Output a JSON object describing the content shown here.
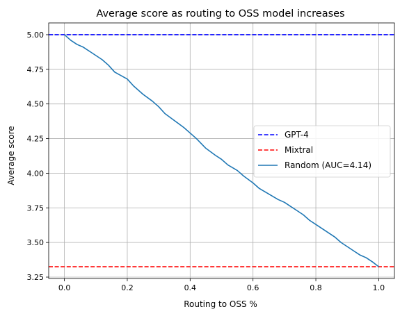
{
  "chart_data": {
    "type": "line",
    "title": "Average score as routing to OSS model increases",
    "xlabel": "Routing to OSS %",
    "ylabel": "Average score",
    "xlim": [
      -0.05,
      1.05
    ],
    "ylim": [
      3.24,
      5.085
    ],
    "xticks": [
      0.0,
      0.2,
      0.4,
      0.6,
      0.8,
      1.0
    ],
    "xtick_labels": [
      "0.0",
      "0.2",
      "0.4",
      "0.6",
      "0.8",
      "1.0"
    ],
    "yticks": [
      3.25,
      3.5,
      3.75,
      4.0,
      4.25,
      4.5,
      4.75,
      5.0
    ],
    "ytick_labels": [
      "3.25",
      "3.50",
      "3.75",
      "4.00",
      "4.25",
      "4.50",
      "4.75",
      "5.00"
    ],
    "grid": true,
    "legend_position": "center-right",
    "hlines": [
      {
        "name": "GPT-4",
        "y": 5.0,
        "color": "#0000ff",
        "style": "dashed"
      },
      {
        "name": "Mixtral",
        "y": 3.325,
        "color": "#ff0000",
        "style": "dashed"
      }
    ],
    "series": [
      {
        "name": "Random (AUC=4.14)",
        "color": "#1f77b4",
        "style": "solid",
        "x": [
          0.0,
          0.02,
          0.04,
          0.06,
          0.08,
          0.1,
          0.12,
          0.14,
          0.16,
          0.2,
          0.22,
          0.25,
          0.28,
          0.3,
          0.32,
          0.35,
          0.38,
          0.4,
          0.42,
          0.45,
          0.48,
          0.5,
          0.52,
          0.55,
          0.57,
          0.6,
          0.62,
          0.65,
          0.68,
          0.7,
          0.72,
          0.74,
          0.76,
          0.78,
          0.8,
          0.82,
          0.84,
          0.86,
          0.88,
          0.9,
          0.92,
          0.94,
          0.96,
          0.98,
          1.0
        ],
        "y": [
          5.0,
          4.96,
          4.93,
          4.91,
          4.88,
          4.85,
          4.82,
          4.78,
          4.73,
          4.68,
          4.63,
          4.57,
          4.52,
          4.48,
          4.43,
          4.38,
          4.33,
          4.29,
          4.25,
          4.18,
          4.13,
          4.1,
          4.06,
          4.02,
          3.98,
          3.93,
          3.89,
          3.85,
          3.81,
          3.79,
          3.76,
          3.73,
          3.7,
          3.66,
          3.63,
          3.6,
          3.57,
          3.54,
          3.5,
          3.47,
          3.44,
          3.41,
          3.39,
          3.36,
          3.325
        ]
      }
    ]
  }
}
